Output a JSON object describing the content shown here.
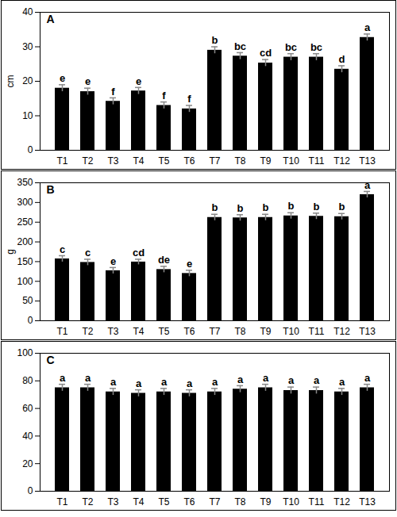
{
  "chart_data": [
    {
      "type": "bar",
      "title": "A",
      "y_label": "cm",
      "color": "#000000",
      "grid": false,
      "categories": [
        "T1",
        "T2",
        "T3",
        "T4",
        "T5",
        "T6",
        "T7",
        "T8",
        "T9",
        "T10",
        "T11",
        "T12",
        "T13"
      ],
      "values": [
        18,
        17,
        14.2,
        17.2,
        13,
        12,
        29,
        27.3,
        25.3,
        27,
        27,
        23.5,
        32.7
      ],
      "errors": [
        1,
        1,
        1,
        1,
        1,
        1,
        1,
        1,
        1,
        1,
        1,
        1,
        1
      ],
      "annotations": [
        "e",
        "e",
        "f",
        "e",
        "f",
        "f",
        "b",
        "bc",
        "cd",
        "bc",
        "bc",
        "d",
        "a"
      ],
      "ylim": [
        0,
        40
      ],
      "yticks": [
        0,
        10,
        20,
        30,
        40
      ]
    },
    {
      "type": "bar",
      "title": "B",
      "y_label": "g",
      "color": "#000000",
      "grid": false,
      "categories": [
        "T1",
        "T2",
        "T3",
        "T4",
        "T5",
        "T6",
        "T7",
        "T8",
        "T9",
        "T10",
        "T11",
        "T12",
        "T13"
      ],
      "values": [
        157,
        148,
        127,
        149,
        130,
        120,
        262,
        261,
        262,
        266,
        265,
        264,
        320
      ],
      "errors": [
        8,
        8,
        8,
        7,
        8,
        8,
        8,
        8,
        8,
        8,
        8,
        8,
        8
      ],
      "annotations": [
        "c",
        "c",
        "e",
        "cd",
        "de",
        "e",
        "b",
        "b",
        "b",
        "b",
        "b",
        "b",
        "a"
      ],
      "ylim": [
        0,
        350
      ],
      "yticks": [
        0,
        50,
        100,
        150,
        200,
        250,
        300,
        350
      ]
    },
    {
      "type": "bar",
      "title": "C",
      "color": "#000000",
      "grid": false,
      "categories": [
        "T1",
        "T2",
        "T3",
        "T4",
        "T5",
        "T6",
        "T7",
        "T8",
        "T9",
        "T10",
        "T11",
        "T12",
        "T13"
      ],
      "values": [
        75,
        75,
        72,
        71,
        72,
        71,
        72,
        74,
        75,
        73,
        73,
        72,
        75
      ],
      "errors": [
        2.5,
        2.5,
        2.5,
        2.5,
        2.5,
        2.5,
        2.5,
        2.5,
        2.5,
        2.5,
        2.5,
        2.5,
        2.5
      ],
      "annotations": [
        "a",
        "a",
        "a",
        "a",
        "a",
        "a",
        "a",
        "a",
        "a",
        "a",
        "a",
        "a",
        "a"
      ],
      "ylim": [
        0,
        100
      ],
      "yticks": [
        0,
        20,
        40,
        60,
        80,
        100
      ]
    }
  ]
}
